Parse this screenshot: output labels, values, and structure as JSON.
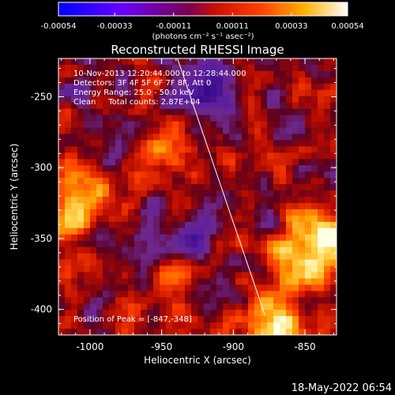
{
  "colorbar": {
    "tick_labels": [
      "-0.00054",
      "-0.00033",
      "-0.00011",
      "0.00011",
      "0.00033",
      "0.00054"
    ],
    "tick_values": [
      -0.00054,
      -0.00033,
      -0.00011,
      0.00011,
      0.00033,
      0.00054
    ],
    "range": [
      -0.00054,
      0.00054
    ],
    "units_label": "(photons cm⁻² s⁻¹ asec⁻²)",
    "colors": [
      "#0000ff",
      "#7a00ff",
      "#b0006a",
      "#ff2000",
      "#ff9a00",
      "#ffe06a",
      "#ffffff"
    ]
  },
  "plot": {
    "title": "Reconstructed RHESSI Image",
    "annotations": [
      "10-Nov-2013 12:20:44.000 to 12:28:44.000",
      "Detectors: 3F 4F 5F 6F 7F 8F, Att 0",
      "Energy Range: 25.0 - 50.0 keV",
      "Clean     Total counts: 2.87E+04"
    ],
    "peak_label": "Position of Peak = [-847,-348]",
    "xlabel": "Heliocentric X (arcsec)",
    "ylabel": "Heliocentric Y (arcsec)",
    "x_ticks": [
      {
        "value": -1000,
        "label": "-1000"
      },
      {
        "value": -950,
        "label": "-950"
      },
      {
        "value": -900,
        "label": "-900"
      },
      {
        "value": -850,
        "label": "-850"
      }
    ],
    "y_ticks": [
      {
        "value": -250,
        "label": "-250"
      },
      {
        "value": -300,
        "label": "-300"
      },
      {
        "value": -350,
        "label": "-350"
      },
      {
        "value": -400,
        "label": "-400"
      }
    ],
    "xlim": [
      -1022,
      -828
    ],
    "ylim": [
      -418,
      -223
    ],
    "limb_line": {
      "x": [
        -939,
        -878
      ],
      "y": [
        -223,
        -404
      ]
    }
  },
  "footer": {
    "timestamp": "18-May-2022 06:54"
  },
  "chart_data": {
    "type": "heatmap",
    "title": "Reconstructed RHESSI Image",
    "xlabel": "Heliocentric X (arcsec)",
    "ylabel": "Heliocentric Y (arcsec)",
    "xlim": [
      -1022,
      -828
    ],
    "ylim": [
      -418,
      -223
    ],
    "peak": [
      -847,
      -348
    ],
    "value_range": [
      -0.00054,
      0.00054
    ]
  }
}
